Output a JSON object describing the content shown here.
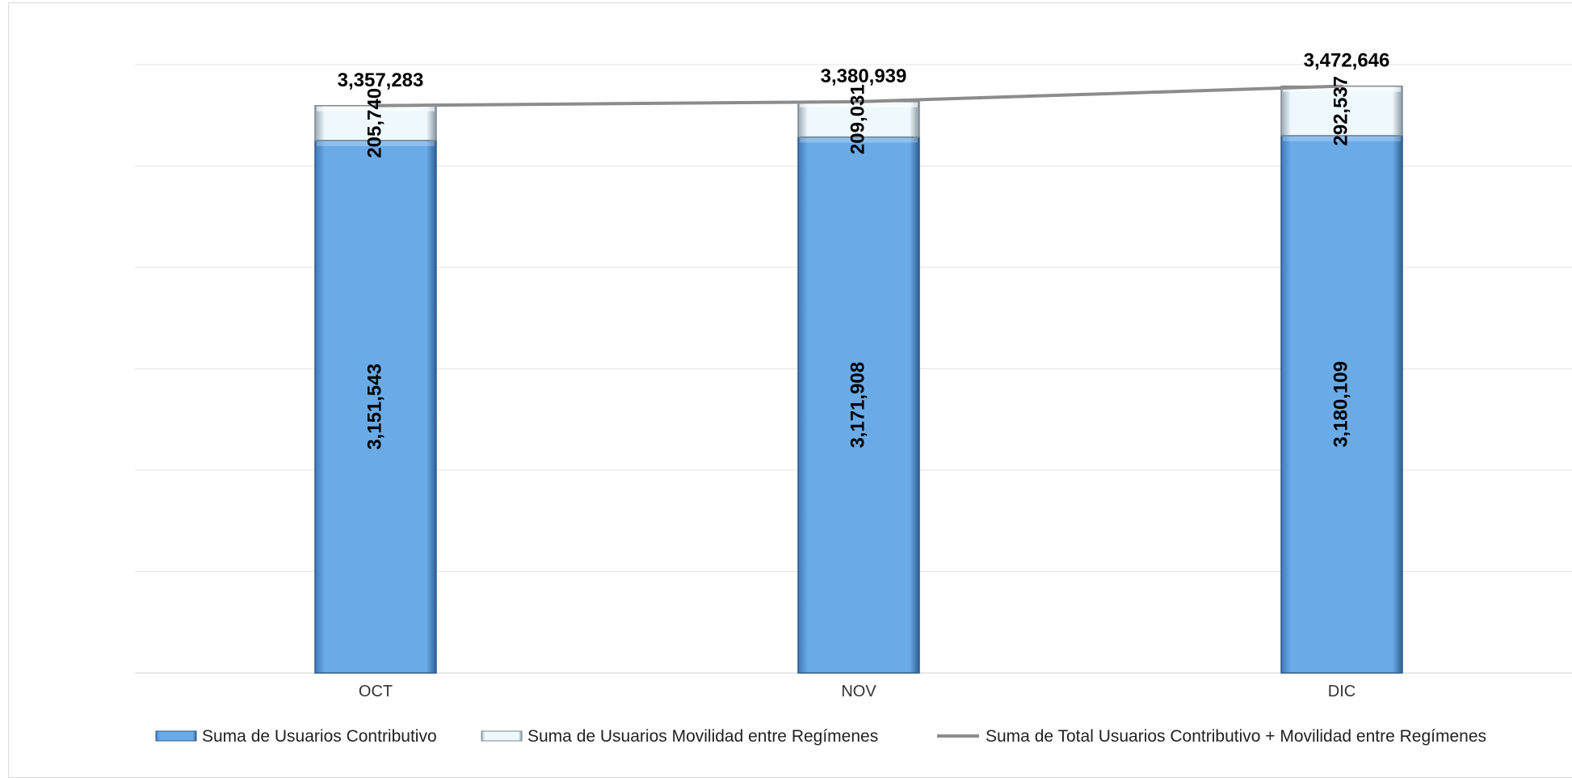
{
  "chart_data": {
    "type": "bar",
    "stacked": true,
    "categories": [
      "OCT",
      "NOV",
      "DIC"
    ],
    "series": [
      {
        "name": "Suma de Usuarios Contributivo",
        "kind": "bar",
        "color": "#6aaae6",
        "values": [
          3151543,
          3171908,
          3180109
        ],
        "labels": [
          "3,151,543",
          "3,171,908",
          "3,180,109"
        ]
      },
      {
        "name": "Suma de Usuarios Movilidad entre Regímenes",
        "kind": "bar",
        "color": "#eaf6fc",
        "values": [
          205740,
          209031,
          292537
        ],
        "labels": [
          "205,740",
          "209,031",
          "292,537"
        ]
      },
      {
        "name": "Suma de Total Usuarios Contributivo + Movilidad entre Regímenes",
        "kind": "line",
        "color": "#8c8c8c",
        "values": [
          3357283,
          3380939,
          3472646
        ],
        "labels": [
          "3,357,283",
          "3,380,939",
          "3,472,646"
        ]
      }
    ],
    "ylim": [
      0,
      3600000
    ],
    "grid": true,
    "legend": "bottom",
    "title": "",
    "xlabel": "",
    "ylabel": ""
  }
}
